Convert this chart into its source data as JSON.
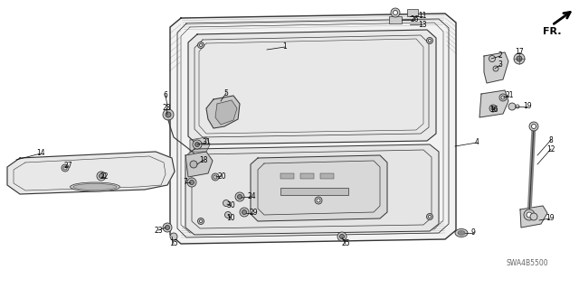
{
  "background_color": "#ffffff",
  "diagram_id": "SWA4B5500",
  "line_color": "#333333",
  "door_fill": "#f0f0f0",
  "part_fill": "#dddddd"
}
